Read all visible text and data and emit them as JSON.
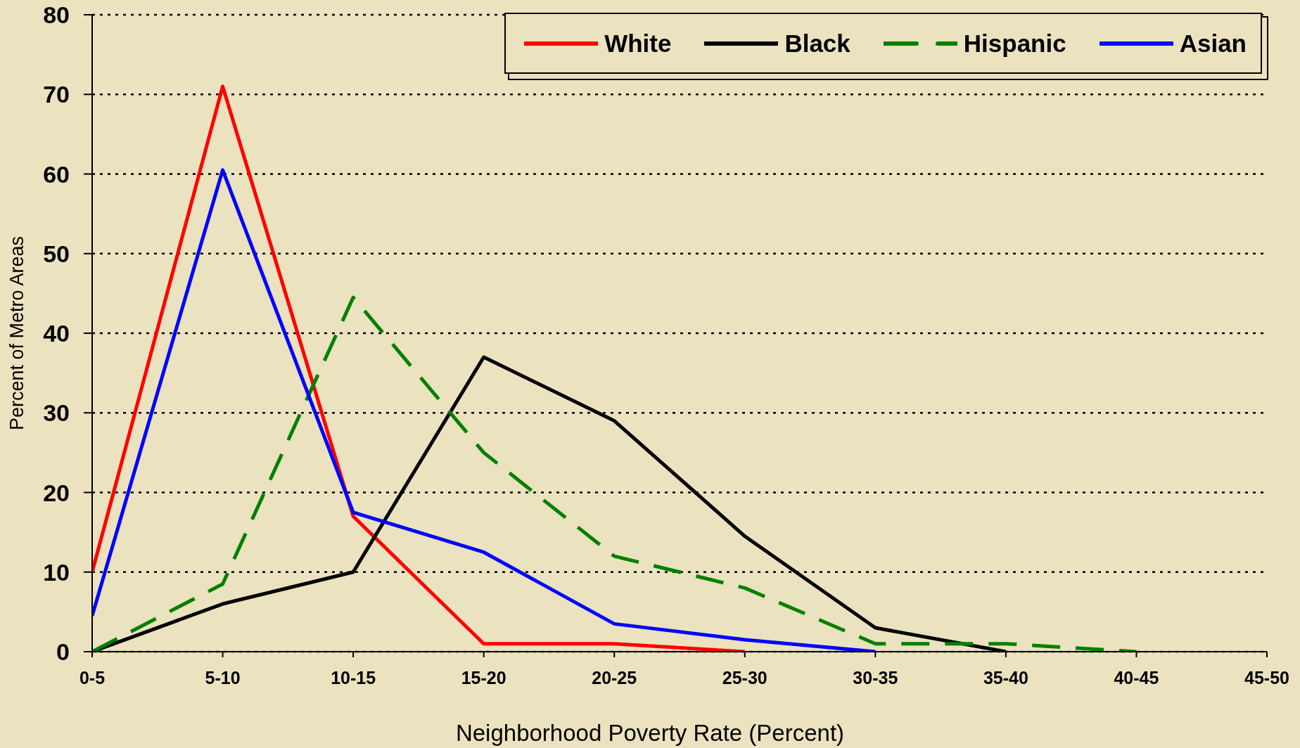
{
  "chart_data": {
    "type": "line",
    "xlabel": "Neighborhood Poverty Rate (Percent)",
    "ylabel": "Percent of Metro Areas",
    "categories": [
      "0-5",
      "5-10",
      "10-15",
      "15-20",
      "20-25",
      "25-30",
      "30-35",
      "35-40",
      "40-45",
      "45-50"
    ],
    "series": [
      {
        "name": "White",
        "color": "#ff0000",
        "values": [
          10,
          71,
          17,
          1,
          1,
          0,
          null,
          null,
          null,
          null
        ]
      },
      {
        "name": "Black",
        "color": "#000000",
        "values": [
          0,
          6,
          10,
          37,
          29,
          14.5,
          3,
          0,
          null,
          null
        ]
      },
      {
        "name": "Hispanic",
        "color": "#008000",
        "line_style": "dashed",
        "values": [
          0,
          8.5,
          44.5,
          25,
          12,
          8,
          1,
          1,
          0,
          null
        ]
      },
      {
        "name": "Asian",
        "color": "#0000ff",
        "values": [
          4.5,
          60.5,
          17.5,
          12.5,
          3.5,
          1.5,
          0,
          null,
          null,
          null
        ]
      }
    ],
    "ylim": [
      0,
      80
    ],
    "yticks": [
      0,
      10,
      20,
      30,
      40,
      50,
      60,
      70,
      80
    ],
    "grid": "y",
    "legend": "top right"
  }
}
